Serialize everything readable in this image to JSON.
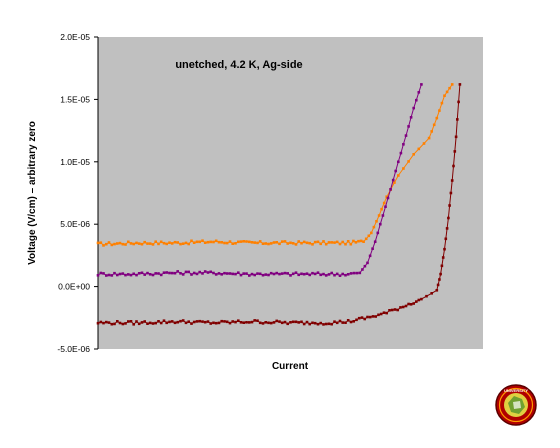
{
  "chart_data": {
    "type": "line",
    "title": "",
    "annotation": "unetched, 4.2 K, Ag-side",
    "xlabel": "Current",
    "ylabel": "Voltage (V/cm) – arbitrary zero",
    "ylim": [
      -5e-06,
      2e-05
    ],
    "xlim": [
      0,
      1
    ],
    "y_ticks": [
      {
        "value": 2e-05,
        "label": "2.0E-05"
      },
      {
        "value": 1.5e-05,
        "label": "1.5E-05"
      },
      {
        "value": 1e-05,
        "label": "1.0E-05"
      },
      {
        "value": 5e-06,
        "label": "5.0E-06"
      },
      {
        "value": 0.0,
        "label": "0.0E+00"
      },
      {
        "value": -5e-06,
        "label": "-5.0E-06"
      }
    ],
    "grid": false,
    "legend": "none",
    "series": [
      {
        "color": "#ff8000",
        "baseline": 3.5e-06,
        "x": [
          0.0,
          0.1,
          0.2,
          0.3,
          0.4,
          0.5,
          0.6,
          0.65,
          0.69,
          0.71,
          0.73,
          0.75,
          0.78,
          0.82,
          0.86,
          0.88,
          0.9,
          0.92
        ],
        "y": [
          3.4e-06,
          3.5e-06,
          3.5e-06,
          3.6e-06,
          3.5e-06,
          3.5e-06,
          3.5e-06,
          3.5e-06,
          3.6e-06,
          4.3e-06,
          5.7e-06,
          7.2e-06,
          8.9e-06,
          1.06e-05,
          1.19e-05,
          1.35e-05,
          1.53e-05,
          1.62e-05
        ]
      },
      {
        "color": "#800080",
        "baseline": 1e-06,
        "x": [
          0.0,
          0.1,
          0.2,
          0.3,
          0.4,
          0.5,
          0.6,
          0.65,
          0.68,
          0.7,
          0.72,
          0.74,
          0.76,
          0.78,
          0.8,
          0.82,
          0.84
        ],
        "y": [
          1e-06,
          1e-06,
          1.1e-06,
          1.1e-06,
          1e-06,
          1e-06,
          1e-06,
          1e-06,
          1.1e-06,
          1.9e-06,
          3.6e-06,
          5.7e-06,
          7.8e-06,
          1e-05,
          1.21e-05,
          1.43e-05,
          1.62e-05
        ]
      },
      {
        "color": "#800000",
        "baseline": -2.9e-06,
        "x": [
          0.0,
          0.1,
          0.2,
          0.3,
          0.4,
          0.5,
          0.6,
          0.65,
          0.7,
          0.75,
          0.8,
          0.84,
          0.88,
          0.89,
          0.9,
          0.91,
          0.92,
          0.93,
          0.94
        ],
        "y": [
          -2.9e-06,
          -2.9e-06,
          -2.8e-06,
          -2.9e-06,
          -2.8e-06,
          -2.9e-06,
          -2.9e-06,
          -2.8e-06,
          -2.5e-06,
          -2.1e-06,
          -1.5e-06,
          -1e-06,
          -3e-07,
          1e-06,
          3e-06,
          5.5e-06,
          8.5e-06,
          1.2e-05,
          1.62e-05
        ]
      }
    ]
  },
  "logo": {
    "caption": "UNIVERSITY"
  }
}
